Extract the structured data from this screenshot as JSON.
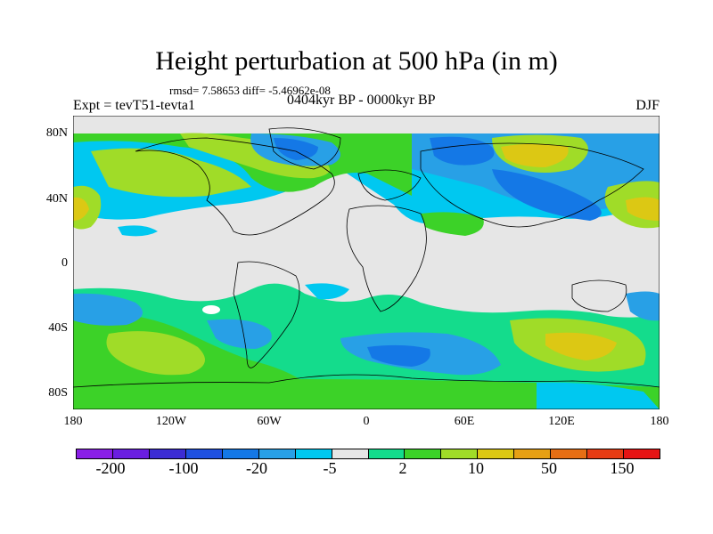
{
  "title": "Height perturbation at 500 hPa (in m)",
  "stats": "rmsd= 7.58653 diff= -5.46962e-08",
  "expt": "Expt = tevT51-tevta1",
  "period": "0404kyr BP - 0000kyr BP",
  "season": "DJF",
  "lat_labels": [
    "80N",
    "40N",
    "0",
    "40S",
    "80S"
  ],
  "lon_labels": [
    "180",
    "120W",
    "60W",
    "0",
    "60E",
    "120E",
    "180"
  ],
  "colorbar": {
    "colors": [
      "#8a1ee6",
      "#6a1ee0",
      "#3c2cd4",
      "#1e50e0",
      "#1478e6",
      "#28a0e6",
      "#00c8f0",
      "#e6e6e6",
      "#14dc8c",
      "#3cd228",
      "#a0dc28",
      "#dcc814",
      "#e6a014",
      "#e66e14",
      "#e63c14",
      "#e61414"
    ],
    "labels": [
      "-200",
      "-100",
      "-20",
      "-5",
      "2",
      "10",
      "50",
      "150"
    ]
  }
}
